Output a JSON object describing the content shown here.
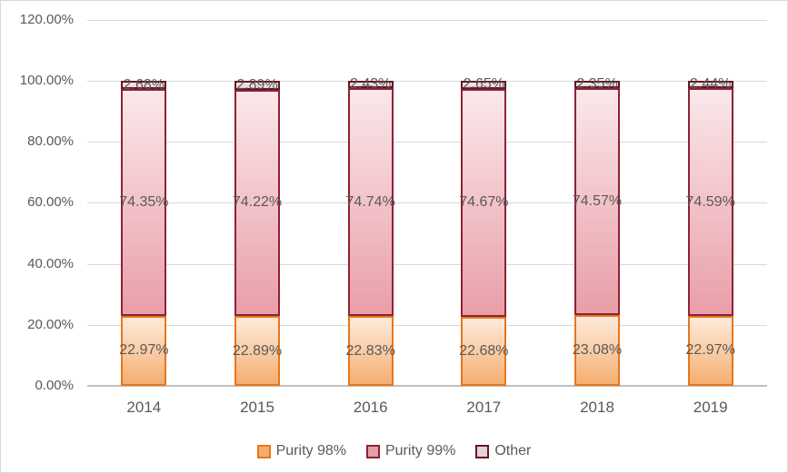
{
  "window": {
    "background": "#FFFFFF",
    "border_color": "#D9D9D9"
  },
  "chart_data": {
    "type": "bar",
    "variant": "stacked-column-100",
    "title": "",
    "categories": [
      "2014",
      "2015",
      "2016",
      "2017",
      "2018",
      "2019"
    ],
    "series": [
      {
        "name": "Purity 98%",
        "values": [
          22.97,
          22.89,
          22.83,
          22.68,
          23.08,
          22.97
        ],
        "data_labels": [
          "22.97%",
          "22.89%",
          "22.83%",
          "22.68%",
          "23.08%",
          "22.97%"
        ],
        "border_color": "#E8761B",
        "fill_top": "#FDEBDB",
        "fill_bottom": "#F5AE70",
        "legend_swatch_fill": "#F3AC6B"
      },
      {
        "name": "Purity 99%",
        "values": [
          74.35,
          74.22,
          74.74,
          74.67,
          74.57,
          74.59
        ],
        "data_labels": [
          "74.35%",
          "74.22%",
          "74.74%",
          "74.67%",
          "74.57%",
          "74.59%"
        ],
        "border_color": "#8E2135",
        "fill_top": "#FAE8EA",
        "fill_bottom": "#E99EA8",
        "legend_swatch_fill": "#E79EA7"
      },
      {
        "name": "Other",
        "values": [
          2.68,
          2.89,
          2.43,
          2.65,
          2.35,
          2.44
        ],
        "data_labels": [
          "2.68%",
          "2.89%",
          "2.43%",
          "2.65%",
          "2.35%",
          "2.44%"
        ],
        "border_color": "#5F1A26",
        "fill_top": "#F6E8E9",
        "fill_bottom": "#EBD6D8",
        "legend_swatch_fill": "#E5D3D5"
      }
    ],
    "y_axis": {
      "ticks": [
        "0.00%",
        "20.00%",
        "40.00%",
        "60.00%",
        "80.00%",
        "100.00%",
        "120.00%"
      ],
      "tick_values": [
        0,
        20,
        40,
        60,
        80,
        100,
        120
      ],
      "min": 0,
      "max": 120,
      "step": 20
    },
    "grid": true,
    "legend_position": "bottom",
    "colors": {
      "axis_text": "#595959",
      "label_text": "#595959",
      "gridline": "#D9D9D9",
      "axis_line": "#BFBFBF"
    }
  }
}
